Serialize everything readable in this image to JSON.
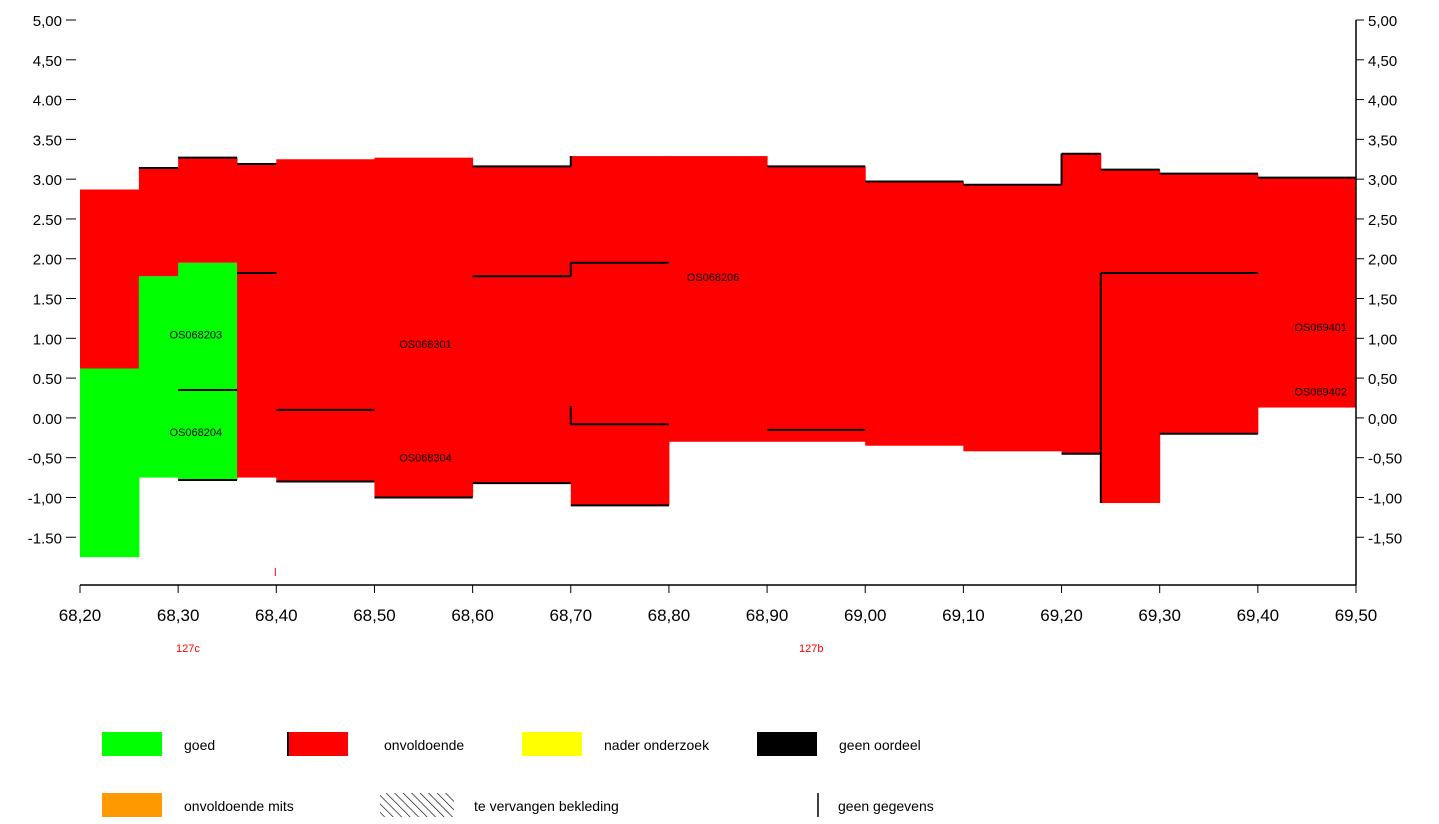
{
  "colors": {
    "goed": "#00ff00",
    "onvoldoende": "#ff0000",
    "nader_onderzoek": "#ffff00",
    "geen_oordeel": "#000000",
    "onvoldoende_mits": "#ff9900",
    "dijkvak_label": "#ff0000"
  },
  "chart_data": {
    "type": "area",
    "title": "",
    "xlabel": "",
    "ylabel": "",
    "xlim": [
      68.2,
      69.5
    ],
    "ylim": [
      -2.1,
      5.0
    ],
    "x_ticks": [
      68.2,
      68.3,
      68.4,
      68.5,
      68.6,
      68.7,
      68.8,
      68.9,
      69.0,
      69.1,
      69.2,
      69.3,
      69.4,
      69.5
    ],
    "x_tick_labels": [
      "68,20",
      "68,30",
      "68,40",
      "68,50",
      "68,60",
      "68,70",
      "68,80",
      "68,90",
      "69,00",
      "69,10",
      "69,20",
      "69,30",
      "69,40",
      "69,50"
    ],
    "y_ticks_left": [
      5.0,
      4.5,
      4.0,
      3.5,
      3.0,
      2.5,
      2.0,
      1.5,
      1.0,
      0.5,
      0.0,
      -0.5,
      -1.0,
      -1.5
    ],
    "y_tick_labels_left": [
      "5,00",
      "4,50",
      "4.00",
      "3.50",
      "3.00",
      "2.50",
      "2.00",
      "1.50",
      "1.00",
      "0.50",
      "0.00",
      "-0,50",
      "-1,00",
      "-1.50"
    ],
    "y_tick_labels_right": [
      "5,00",
      "4,50",
      "4,00",
      "3,50",
      "3,00",
      "2,50",
      "2,00",
      "1,50",
      "1,00",
      "0,50",
      "0,00",
      "-0,50",
      "-1,00",
      "-1,50"
    ],
    "grid": false,
    "legend_position": "bottom",
    "segments": [
      {
        "x0": 68.2,
        "x1": 68.26,
        "y_bottom": -1.75,
        "y_top": 0.62,
        "status": "goed"
      },
      {
        "x0": 68.2,
        "x1": 68.26,
        "y_bottom": 0.62,
        "y_top": 2.87,
        "status": "onvoldoende"
      },
      {
        "x0": 68.26,
        "x1": 68.3,
        "y_bottom": -0.75,
        "y_top": 1.78,
        "status": "goed"
      },
      {
        "x0": 68.26,
        "x1": 68.3,
        "y_bottom": 1.78,
        "y_top": 3.14,
        "status": "onvoldoende"
      },
      {
        "x0": 68.3,
        "x1": 68.36,
        "y_bottom": -0.78,
        "y_top": 1.95,
        "status": "goed"
      },
      {
        "x0": 68.3,
        "x1": 68.36,
        "y_bottom": 1.95,
        "y_top": 3.27,
        "status": "onvoldoende"
      },
      {
        "x0": 68.36,
        "x1": 68.4,
        "y_bottom": -0.75,
        "y_top": 3.19,
        "status": "onvoldoende"
      },
      {
        "x0": 68.4,
        "x1": 68.5,
        "y_bottom": -0.8,
        "y_top": 3.25,
        "status": "onvoldoende"
      },
      {
        "x0": 68.5,
        "x1": 68.6,
        "y_bottom": -1.0,
        "y_top": 3.27,
        "status": "onvoldoende"
      },
      {
        "x0": 68.6,
        "x1": 68.7,
        "y_bottom": -0.82,
        "y_top": 3.16,
        "status": "onvoldoende"
      },
      {
        "x0": 68.7,
        "x1": 68.8,
        "y_bottom": -1.1,
        "y_top": 3.29,
        "status": "onvoldoende"
      },
      {
        "x0": 68.8,
        "x1": 68.9,
        "y_bottom": -0.3,
        "y_top": 3.29,
        "status": "onvoldoende"
      },
      {
        "x0": 68.9,
        "x1": 69.0,
        "y_bottom": -0.3,
        "y_top": 3.16,
        "status": "onvoldoende"
      },
      {
        "x0": 69.0,
        "x1": 69.1,
        "y_bottom": -0.35,
        "y_top": 2.97,
        "status": "onvoldoende"
      },
      {
        "x0": 69.1,
        "x1": 69.2,
        "y_bottom": -0.42,
        "y_top": 2.93,
        "status": "onvoldoende"
      },
      {
        "x0": 69.2,
        "x1": 69.24,
        "y_bottom": -0.45,
        "y_top": 3.32,
        "status": "onvoldoende"
      },
      {
        "x0": 69.24,
        "x1": 69.3,
        "y_bottom": -1.07,
        "y_top": 3.12,
        "status": "onvoldoende"
      },
      {
        "x0": 69.3,
        "x1": 69.4,
        "y_bottom": -0.2,
        "y_top": 3.07,
        "status": "onvoldoende"
      },
      {
        "x0": 69.4,
        "x1": 69.5,
        "y_bottom": 0.13,
        "y_top": 3.02,
        "status": "onvoldoende"
      }
    ],
    "boundary_lines": [
      {
        "x0": 68.26,
        "x1": 68.3,
        "y0": 3.14,
        "y1": 3.14
      },
      {
        "x0": 68.3,
        "x1": 68.36,
        "y0": 3.27,
        "y1": 3.27
      },
      {
        "x0": 68.36,
        "x1": 68.4,
        "y0": 3.19,
        "y1": 3.19
      },
      {
        "x0": 68.6,
        "x1": 68.7,
        "y0": 3.16,
        "y1": 3.16
      },
      {
        "x0": 68.7,
        "x1": 68.7,
        "y0": 3.16,
        "y1": 3.29
      },
      {
        "x0": 68.9,
        "x1": 69.0,
        "y0": 3.16,
        "y1": 3.16
      },
      {
        "x0": 69.0,
        "x1": 69.1,
        "y0": 2.97,
        "y1": 2.97
      },
      {
        "x0": 69.1,
        "x1": 69.2,
        "y0": 2.93,
        "y1": 2.93
      },
      {
        "x0": 69.2,
        "x1": 69.2,
        "y0": 2.93,
        "y1": 3.32
      },
      {
        "x0": 69.2,
        "x1": 69.24,
        "y0": 3.32,
        "y1": 3.32
      },
      {
        "x0": 69.24,
        "x1": 69.3,
        "y0": 3.12,
        "y1": 3.12
      },
      {
        "x0": 69.3,
        "x1": 69.4,
        "y0": 3.07,
        "y1": 3.07
      },
      {
        "x0": 69.4,
        "x1": 69.5,
        "y0": 3.02,
        "y1": 3.02
      },
      {
        "x0": 68.3,
        "x1": 68.36,
        "y0": 0.35,
        "y1": 0.35
      },
      {
        "x0": 68.3,
        "x1": 68.36,
        "y0": -0.78,
        "y1": -0.78
      },
      {
        "x0": 68.36,
        "x1": 68.4,
        "y0": 1.82,
        "y1": 1.82
      },
      {
        "x0": 68.4,
        "x1": 68.5,
        "y0": 0.1,
        "y1": 0.1
      },
      {
        "x0": 68.4,
        "x1": 68.5,
        "y0": -0.8,
        "y1": -0.8
      },
      {
        "x0": 68.5,
        "x1": 68.6,
        "y0": -1.0,
        "y1": -1.0
      },
      {
        "x0": 68.6,
        "x1": 68.7,
        "y0": 1.78,
        "y1": 1.78
      },
      {
        "x0": 68.6,
        "x1": 68.7,
        "y0": -0.82,
        "y1": -0.82
      },
      {
        "x0": 68.7,
        "x1": 68.7,
        "y0": 1.78,
        "y1": 1.95
      },
      {
        "x0": 68.7,
        "x1": 68.8,
        "y0": 1.95,
        "y1": 1.95
      },
      {
        "x0": 68.7,
        "x1": 68.7,
        "y0": 0.15,
        "y1": -0.08
      },
      {
        "x0": 68.7,
        "x1": 68.8,
        "y0": -0.08,
        "y1": -0.08
      },
      {
        "x0": 68.7,
        "x1": 68.8,
        "y0": -1.1,
        "y1": -1.1
      },
      {
        "x0": 68.9,
        "x1": 69.0,
        "y0": -0.15,
        "y1": -0.15
      },
      {
        "x0": 69.2,
        "x1": 69.24,
        "y0": -0.45,
        "y1": -0.45
      },
      {
        "x0": 69.24,
        "x1": 69.24,
        "y0": 1.82,
        "y1": -1.07
      },
      {
        "x0": 69.24,
        "x1": 69.4,
        "y0": 1.82,
        "y1": 1.82
      },
      {
        "x0": 69.3,
        "x1": 69.4,
        "y0": -0.2,
        "y1": -0.2
      }
    ],
    "annotations": [
      {
        "text": "OS068203",
        "x": 68.318,
        "y": 1.05
      },
      {
        "text": "OS068204",
        "x": 68.318,
        "y": -0.18
      },
      {
        "text": "OS068301",
        "x": 68.552,
        "y": 0.93
      },
      {
        "text": "OS068304",
        "x": 68.552,
        "y": -0.5
      },
      {
        "text": "OS068206",
        "x": 68.845,
        "y": 1.77
      },
      {
        "text": "OS069401",
        "x": 69.464,
        "y": 1.14
      },
      {
        "text": "OS069402",
        "x": 69.464,
        "y": 0.33
      }
    ],
    "dijkvak_labels": [
      {
        "text": "127c",
        "x": 68.31
      },
      {
        "text": "127b",
        "x": 68.945
      }
    ],
    "legend": [
      {
        "label": "goed",
        "color": "#00ff00",
        "kind": "box"
      },
      {
        "label": "onvoldoende",
        "color": "#ff0000",
        "kind": "box"
      },
      {
        "label": "nader onderzoek",
        "color": "#ffff00",
        "kind": "box"
      },
      {
        "label": "geen oordeel",
        "color": "#000000",
        "kind": "box"
      },
      {
        "label": "onvoldoende mits",
        "color": "#ff9900",
        "kind": "box"
      },
      {
        "label": "te vervangen bekleding",
        "color": "#000000",
        "kind": "hatch"
      },
      {
        "label": "geen gegevens",
        "color": "#000000",
        "kind": "bar"
      }
    ]
  }
}
